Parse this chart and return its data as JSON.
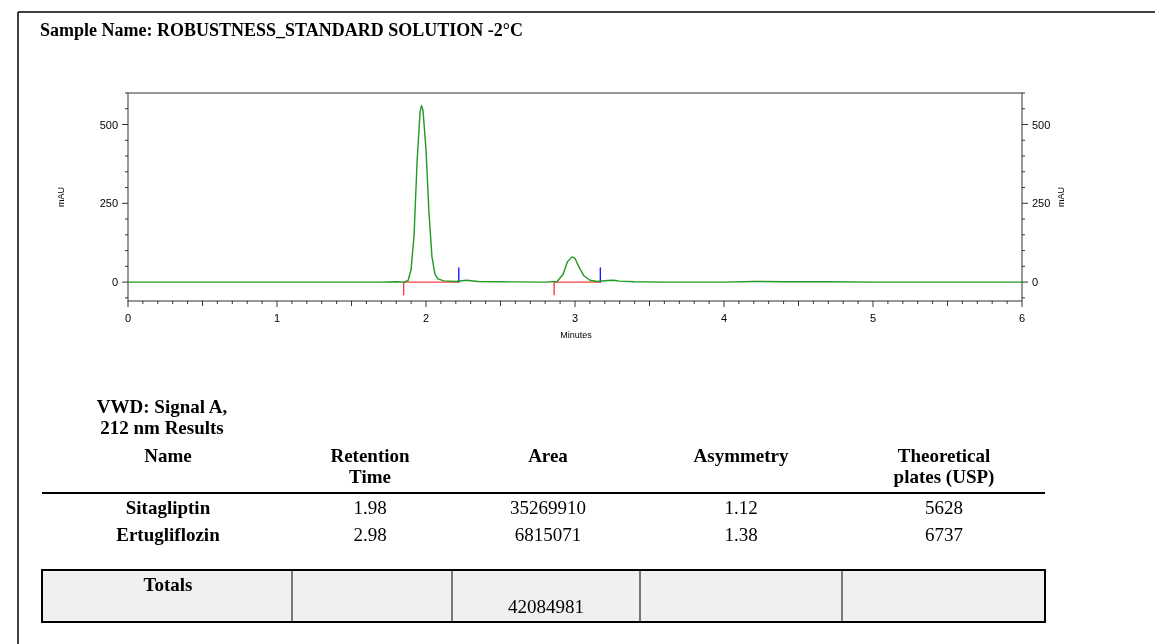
{
  "chart_data": {
    "type": "line",
    "title": "Sample Name: ROBUSTNESS_STANDARD SOLUTION -2°C",
    "xlabel": "Minutes",
    "ylabel": "mAU",
    "y2label": "mAU",
    "xlim": [
      0,
      6
    ],
    "xticks": [
      0,
      {
        "value": 0.1,
        "label": null
      },
      {
        "value": 0.2,
        "label": null
      },
      {
        "value": 0.3,
        "label": null
      },
      {
        "value": 0.4,
        "label": null
      },
      {
        "value": 0.5,
        "label": null
      },
      {
        "value": 0.6,
        "label": null
      },
      {
        "value": 0.7,
        "label": null
      },
      {
        "value": 0.8,
        "label": null
      },
      {
        "value": 0.9,
        "label": null
      },
      1,
      {
        "value": 1.1,
        "label": null
      },
      {
        "value": 1.2,
        "label": null
      },
      {
        "value": 1.3,
        "label": null
      },
      {
        "value": 1.4,
        "label": null
      },
      {
        "value": 1.5,
        "label": null
      },
      {
        "value": 1.6,
        "label": null
      },
      {
        "value": 1.7,
        "label": null
      },
      {
        "value": 1.8,
        "label": null
      },
      {
        "value": 1.9,
        "label": null
      },
      2,
      {
        "value": 2.1,
        "label": null
      },
      {
        "value": 2.2,
        "label": null
      },
      {
        "value": 2.3,
        "label": null
      },
      {
        "value": 2.4,
        "label": null
      },
      {
        "value": 2.5,
        "label": null
      },
      {
        "value": 2.6,
        "label": null
      },
      {
        "value": 2.7,
        "label": null
      },
      {
        "value": 2.8,
        "label": null
      },
      {
        "value": 2.9,
        "label": null
      },
      3,
      {
        "value": 3.1,
        "label": null
      },
      {
        "value": 3.2,
        "label": null
      },
      {
        "value": 3.3,
        "label": null
      },
      {
        "value": 3.4,
        "label": null
      },
      {
        "value": 3.5,
        "label": null
      },
      {
        "value": 3.6,
        "label": null
      },
      {
        "value": 3.7,
        "label": null
      },
      {
        "value": 3.8,
        "label": null
      },
      {
        "value": 3.9,
        "label": null
      },
      4,
      {
        "value": 4.1,
        "label": null
      },
      {
        "value": 4.2,
        "label": null
      },
      {
        "value": 4.3,
        "label": null
      },
      {
        "value": 4.4,
        "label": null
      },
      {
        "value": 4.5,
        "label": null
      },
      {
        "value": 4.6,
        "label": null
      },
      {
        "value": 4.7,
        "label": null
      },
      {
        "value": 4.8,
        "label": null
      },
      {
        "value": 4.9,
        "label": null
      },
      5,
      {
        "value": 5.1,
        "label": null
      },
      {
        "value": 5.2,
        "label": null
      },
      {
        "value": 5.3,
        "label": null
      },
      {
        "value": 5.4,
        "label": null
      },
      {
        "value": 5.5,
        "label": null
      },
      {
        "value": 5.6,
        "label": null
      },
      {
        "value": 5.7,
        "label": null
      },
      {
        "value": 5.8,
        "label": null
      },
      {
        "value": 5.9,
        "label": null
      },
      6
    ],
    "ylim": [
      -60,
      600
    ],
    "yticks": [
      {
        "value": -50,
        "label": null
      },
      0,
      {
        "value": 50,
        "label": null
      },
      {
        "value": 100,
        "label": null
      },
      {
        "value": 150,
        "label": null
      },
      {
        "value": 200,
        "label": null
      },
      250,
      {
        "value": 300,
        "label": null
      },
      {
        "value": 350,
        "label": null
      },
      {
        "value": 400,
        "label": null
      },
      {
        "value": 450,
        "label": null
      },
      500,
      {
        "value": 550,
        "label": null
      },
      {
        "value": 600,
        "label": null
      }
    ],
    "y2lim": [
      -60,
      600
    ],
    "y2ticks": [
      {
        "value": -50,
        "label": null
      },
      0,
      {
        "value": 50,
        "label": null
      },
      {
        "value": 100,
        "label": null
      },
      {
        "value": 150,
        "label": null
      },
      {
        "value": 200,
        "label": null
      },
      250,
      {
        "value": 300,
        "label": null
      },
      {
        "value": 350,
        "label": null
      },
      {
        "value": 400,
        "label": null
      },
      {
        "value": 450,
        "label": null
      },
      500,
      {
        "value": 550,
        "label": null
      },
      {
        "value": 600,
        "label": null
      }
    ],
    "series": [
      {
        "color": "#ff4040",
        "x": [
          1.85,
          1.85,
          2.22,
          2.5,
          2.86,
          2.86,
          3.17
        ],
        "values": [
          -40,
          0,
          0,
          null,
          -40,
          0,
          0
        ]
      },
      {
        "color": "#1a1aff",
        "x": [
          2.22,
          2.22,
          2.7,
          3.17,
          3.17
        ],
        "values": [
          0,
          45,
          null,
          0,
          45
        ]
      },
      {
        "color": "#229922",
        "x": [
          0,
          1.7,
          1.8,
          1.85,
          1.88,
          1.9,
          1.92,
          1.94,
          1.96,
          1.97,
          1.98,
          2.0,
          2.02,
          2.04,
          2.06,
          2.08,
          2.12,
          2.2,
          2.27,
          2.35,
          2.5,
          2.8,
          2.88,
          2.92,
          2.95,
          2.98,
          3.0,
          3.03,
          3.06,
          3.1,
          3.15,
          3.22,
          3.26,
          3.3,
          3.4,
          3.6,
          4.0,
          4.2,
          4.4,
          4.7,
          5.0,
          6.0
        ],
        "values": [
          0,
          0,
          1,
          0,
          5,
          40,
          150,
          380,
          540,
          560,
          545,
          420,
          220,
          80,
          25,
          10,
          4,
          2,
          6,
          2,
          1,
          0,
          2,
          25,
          65,
          80,
          75,
          45,
          20,
          6,
          2,
          5,
          6,
          3,
          1,
          0,
          0,
          2,
          1,
          1,
          0,
          0
        ]
      }
    ],
    "annotations": [
      "VWD: Signal A,\n212 nm Results",
      "Name",
      "Retention\nTime",
      "Area",
      "Asymmetry",
      "Theoretical\nplates (USP)",
      "Sitagliptin",
      "1.98",
      "35269910",
      "1.12",
      "5628",
      "Ertugliflozin",
      "2.98",
      "6815071",
      "1.38",
      "6737",
      "Totals",
      "42084981"
    ]
  }
}
